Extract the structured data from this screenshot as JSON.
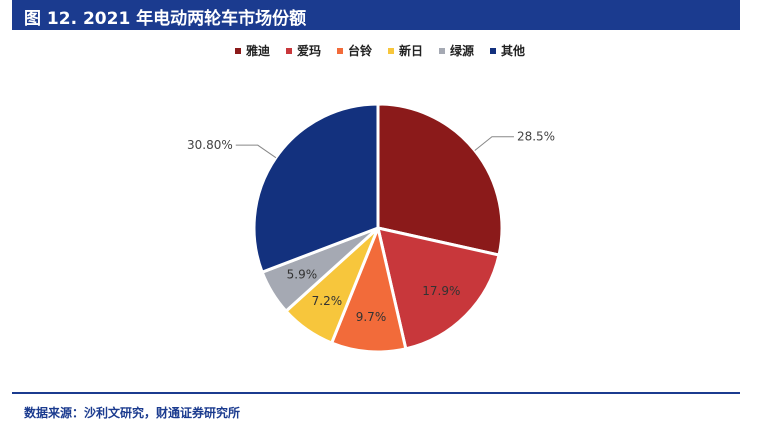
{
  "header": {
    "title": "图 12. 2021 年电动两轮车市场份额"
  },
  "footer": {
    "source": "数据来源：沙利文研究，财通证券研究所"
  },
  "colors": {
    "accent": "#1b3b8f"
  },
  "chart_data": {
    "type": "pie",
    "title": "",
    "legend_position": "top",
    "start": "12 o'clock, clockwise",
    "slices": [
      {
        "name": "雅迪",
        "value": 28.5,
        "label": "28.5%",
        "color": "#8b1a1a"
      },
      {
        "name": "爱玛",
        "value": 17.9,
        "label": "17.9%",
        "color": "#c8373b"
      },
      {
        "name": "台铃",
        "value": 9.7,
        "label": "9.7%",
        "color": "#f26b3a"
      },
      {
        "name": "新日",
        "value": 7.2,
        "label": "7.2%",
        "color": "#f7c63c"
      },
      {
        "name": "绿源",
        "value": 5.9,
        "label": "5.9%",
        "color": "#a5a9b3"
      },
      {
        "name": "其他",
        "value": 30.8,
        "label": "30.80%",
        "color": "#13317e"
      }
    ]
  }
}
